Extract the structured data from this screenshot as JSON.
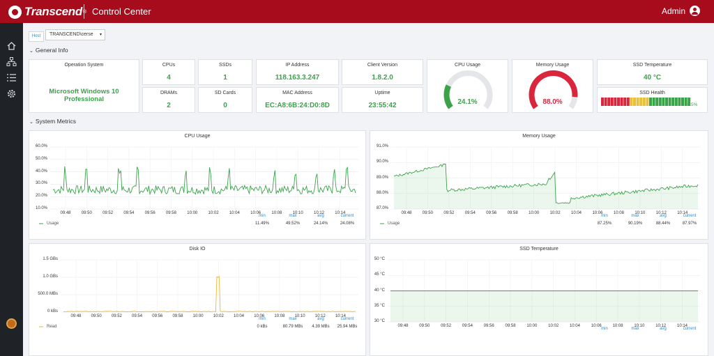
{
  "header": {
    "brand": "Transcend",
    "brand_mark": "®",
    "app_title": "Control Center",
    "user": "Admin"
  },
  "sidebar": {
    "items": [
      {
        "name": "home-icon"
      },
      {
        "name": "network-icon"
      },
      {
        "name": "list-icon"
      },
      {
        "name": "gear-icon"
      }
    ]
  },
  "host": {
    "label": "Host",
    "value": "TRANSCEND\\cerse"
  },
  "sections": {
    "general": "General Info",
    "metrics": "System Metrics"
  },
  "general": {
    "os": {
      "title": "Operation System",
      "value": "Microsoft Windows 10 Professional"
    },
    "cpus": {
      "title": "CPUs",
      "value": "4"
    },
    "ssds": {
      "title": "SSDs",
      "value": "1"
    },
    "dram": {
      "title": "DRAMs",
      "value": "2"
    },
    "sd": {
      "title": "SD Cards",
      "value": "0"
    },
    "ip": {
      "title": "IP Address",
      "value": "118.163.3.247"
    },
    "mac": {
      "title": "MAC Address",
      "value": "EC:A8:6B:24:D0:8D"
    },
    "client": {
      "title": "Client Version",
      "value": "1.8.2.0"
    },
    "uptime": {
      "title": "Uptime",
      "value": "23:55:42"
    },
    "cpu_gauge": {
      "title": "CPU Usage",
      "value": "24.1%",
      "fraction": 0.241,
      "color": "#3aa34a"
    },
    "mem_gauge": {
      "title": "Memory Usage",
      "value": "88.0%",
      "fraction": 0.88,
      "color": "#d9263d"
    },
    "ssd_temp": {
      "title": "SSD Temperature",
      "value": "40 °C"
    },
    "ssd_health": {
      "title": "SSD Health",
      "value": "98.5%",
      "fraction": 0.985
    }
  },
  "chart_data": [
    {
      "id": "cpu",
      "type": "line",
      "title": "CPU Usage",
      "ylim": [
        10,
        60
      ],
      "yticks": [
        "60.0%",
        "50.0%",
        "40.0%",
        "30.0%",
        "20.0%",
        "10.0%"
      ],
      "xticks": [
        "09:48",
        "09:50",
        "09:52",
        "09:54",
        "09:56",
        "09:58",
        "10:00",
        "10:02",
        "10:04",
        "10:06",
        "10:08",
        "10:10",
        "10:12",
        "10:14"
      ],
      "series": [
        {
          "name": "Usage",
          "color": "#3aa34a"
        }
      ],
      "stats": {
        "labels": [
          "min",
          "max",
          "avg",
          "current"
        ],
        "values": [
          "11.49%",
          "49.52%",
          "24.14%",
          "24.08%"
        ]
      },
      "grid": true
    },
    {
      "id": "mem",
      "type": "area",
      "title": "Memory Usage",
      "ylim": [
        87,
        91
      ],
      "yticks": [
        "91.0%",
        "90.0%",
        "89.0%",
        "88.0%",
        "87.0%"
      ],
      "xticks": [
        "09:48",
        "09:50",
        "09:52",
        "09:54",
        "09:56",
        "09:58",
        "10:00",
        "10:02",
        "10:04",
        "10:06",
        "10:08",
        "10:10",
        "10:12",
        "10:14"
      ],
      "series": [
        {
          "name": "Usage",
          "color": "#3aa34a"
        }
      ],
      "stats": {
        "labels": [
          "min",
          "max",
          "avg",
          "current"
        ],
        "values": [
          "87.25%",
          "90.19%",
          "88.44%",
          "87.97%"
        ]
      },
      "grid": true
    },
    {
      "id": "disk",
      "type": "line",
      "title": "Disk IO",
      "ylim": [
        0,
        1.5
      ],
      "yticks": [
        "1.5 GBs",
        "1.0 GBs",
        "500.0 MBs",
        "0 kBs"
      ],
      "xticks": [
        "09:48",
        "09:50",
        "09:52",
        "09:54",
        "09:56",
        "09:58",
        "10:00",
        "10:02",
        "10:04",
        "10:06",
        "10:08",
        "10:10",
        "10:12",
        "10:14"
      ],
      "series": [
        {
          "name": "Read",
          "color": "#e5b83b"
        }
      ],
      "stats": {
        "labels": [
          "min",
          "max",
          "avg",
          "current"
        ],
        "values": [
          "0 kBs",
          "80.79 MBs",
          "4.39 MBs",
          "25.94 MBs"
        ]
      },
      "grid": true
    },
    {
      "id": "temp",
      "type": "area",
      "title": "SSD Temperature",
      "ylim": [
        30,
        50
      ],
      "yticks": [
        "50 °C",
        "45 °C",
        "40 °C",
        "35 °C",
        "30 °C"
      ],
      "xticks": [
        "09:48",
        "09:50",
        "09:52",
        "09:54",
        "09:56",
        "09:58",
        "10:00",
        "10:02",
        "10:04",
        "10:06",
        "10:08",
        "10:10",
        "10:12",
        "10:14"
      ],
      "series": [
        {
          "name": "",
          "color": "#3aa34a",
          "constant": 40
        }
      ],
      "stats": {
        "labels": [
          "min",
          "max",
          "avg",
          "current"
        ],
        "values": []
      },
      "grid": true
    }
  ]
}
